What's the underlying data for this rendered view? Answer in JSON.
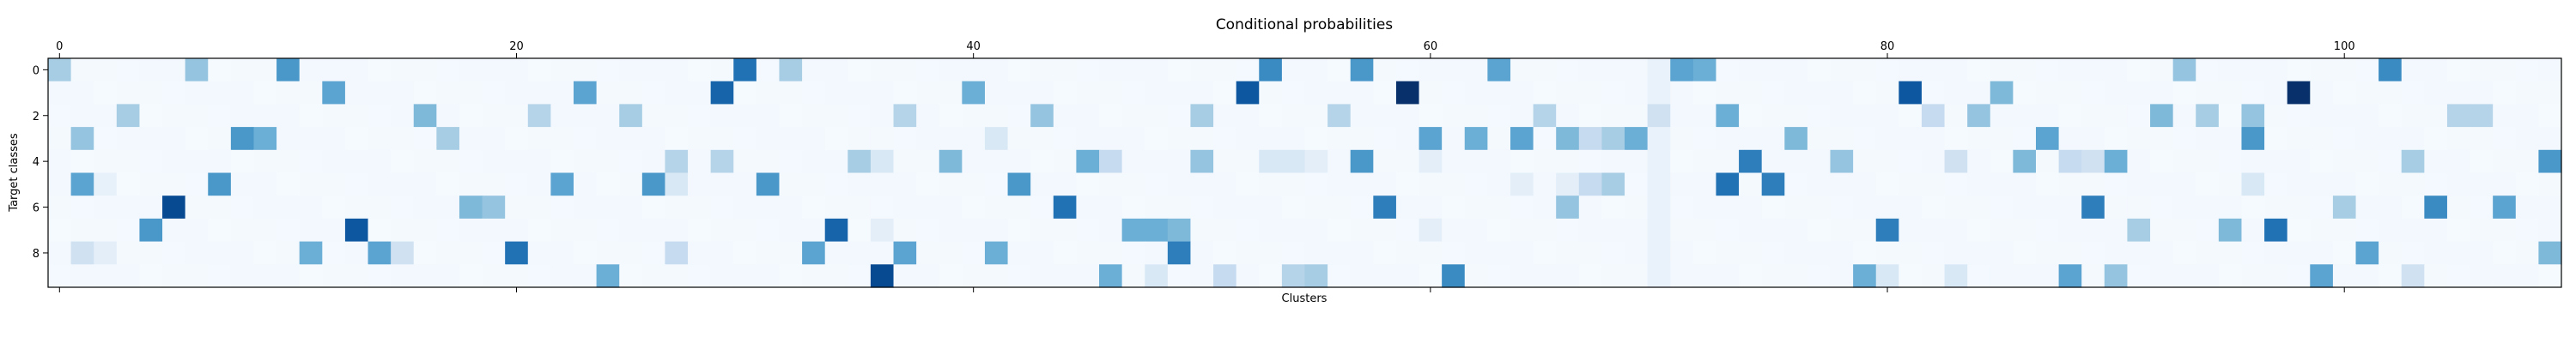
{
  "chart_data": {
    "type": "heatmap",
    "title": "Conditional probabilities",
    "xlabel": "Clusters",
    "ylabel": "Target classes",
    "n_cols": 110,
    "n_rows": 10,
    "x_ticks": [
      0,
      20,
      40,
      60,
      80,
      100
    ],
    "y_ticks": [
      0,
      2,
      4,
      6,
      8
    ],
    "x_tick_labels": [
      "0",
      "20",
      "40",
      "60",
      "80",
      "100"
    ],
    "y_tick_labels": [
      "0",
      "2",
      "4",
      "6",
      "8"
    ],
    "x_ticks_position": "top and bottom",
    "colormap": "Blues",
    "colormap_colors": [
      "#f7fbff",
      "#deebf7",
      "#c6dbef",
      "#9ecae1",
      "#6baed6",
      "#4292c6",
      "#2171b5",
      "#08519c",
      "#08306b"
    ],
    "grid": false,
    "background_level": 0.02,
    "cells": [
      {
        "row": 0,
        "col": 0,
        "v": 0.35
      },
      {
        "row": 0,
        "col": 6,
        "v": 0.4
      },
      {
        "row": 0,
        "col": 10,
        "v": 0.6
      },
      {
        "row": 0,
        "col": 30,
        "v": 0.75
      },
      {
        "row": 0,
        "col": 32,
        "v": 0.35
      },
      {
        "row": 0,
        "col": 53,
        "v": 0.65
      },
      {
        "row": 0,
        "col": 57,
        "v": 0.6
      },
      {
        "row": 0,
        "col": 63,
        "v": 0.55
      },
      {
        "row": 0,
        "col": 71,
        "v": 0.55
      },
      {
        "row": 0,
        "col": 72,
        "v": 0.5
      },
      {
        "row": 0,
        "col": 93,
        "v": 0.4
      },
      {
        "row": 0,
        "col": 102,
        "v": 0.65
      },
      {
        "row": 1,
        "col": 12,
        "v": 0.55
      },
      {
        "row": 1,
        "col": 23,
        "v": 0.55
      },
      {
        "row": 1,
        "col": 29,
        "v": 0.8
      },
      {
        "row": 1,
        "col": 40,
        "v": 0.5
      },
      {
        "row": 1,
        "col": 52,
        "v": 0.85
      },
      {
        "row": 1,
        "col": 59,
        "v": 1.0
      },
      {
        "row": 1,
        "col": 81,
        "v": 0.85
      },
      {
        "row": 1,
        "col": 85,
        "v": 0.45
      },
      {
        "row": 1,
        "col": 98,
        "v": 1.0
      },
      {
        "row": 2,
        "col": 3,
        "v": 0.35
      },
      {
        "row": 2,
        "col": 16,
        "v": 0.45
      },
      {
        "row": 2,
        "col": 21,
        "v": 0.3
      },
      {
        "row": 2,
        "col": 25,
        "v": 0.35
      },
      {
        "row": 2,
        "col": 37,
        "v": 0.3
      },
      {
        "row": 2,
        "col": 43,
        "v": 0.4
      },
      {
        "row": 2,
        "col": 50,
        "v": 0.35
      },
      {
        "row": 2,
        "col": 56,
        "v": 0.3
      },
      {
        "row": 2,
        "col": 65,
        "v": 0.3
      },
      {
        "row": 2,
        "col": 70,
        "v": 0.2
      },
      {
        "row": 2,
        "col": 73,
        "v": 0.5
      },
      {
        "row": 2,
        "col": 82,
        "v": 0.25
      },
      {
        "row": 2,
        "col": 84,
        "v": 0.4
      },
      {
        "row": 2,
        "col": 92,
        "v": 0.45
      },
      {
        "row": 2,
        "col": 94,
        "v": 0.35
      },
      {
        "row": 2,
        "col": 96,
        "v": 0.4
      },
      {
        "row": 2,
        "col": 105,
        "v": 0.3
      },
      {
        "row": 2,
        "col": 106,
        "v": 0.3
      },
      {
        "row": 3,
        "col": 1,
        "v": 0.4
      },
      {
        "row": 3,
        "col": 8,
        "v": 0.6
      },
      {
        "row": 3,
        "col": 9,
        "v": 0.5
      },
      {
        "row": 3,
        "col": 17,
        "v": 0.35
      },
      {
        "row": 3,
        "col": 41,
        "v": 0.15
      },
      {
        "row": 3,
        "col": 60,
        "v": 0.55
      },
      {
        "row": 3,
        "col": 62,
        "v": 0.5
      },
      {
        "row": 3,
        "col": 64,
        "v": 0.55
      },
      {
        "row": 3,
        "col": 66,
        "v": 0.45
      },
      {
        "row": 3,
        "col": 67,
        "v": 0.25
      },
      {
        "row": 3,
        "col": 68,
        "v": 0.35
      },
      {
        "row": 3,
        "col": 69,
        "v": 0.5
      },
      {
        "row": 3,
        "col": 76,
        "v": 0.45
      },
      {
        "row": 3,
        "col": 87,
        "v": 0.55
      },
      {
        "row": 3,
        "col": 96,
        "v": 0.6
      },
      {
        "row": 4,
        "col": 27,
        "v": 0.3
      },
      {
        "row": 4,
        "col": 29,
        "v": 0.3
      },
      {
        "row": 4,
        "col": 35,
        "v": 0.35
      },
      {
        "row": 4,
        "col": 36,
        "v": 0.15
      },
      {
        "row": 4,
        "col": 39,
        "v": 0.45
      },
      {
        "row": 4,
        "col": 45,
        "v": 0.5
      },
      {
        "row": 4,
        "col": 46,
        "v": 0.25
      },
      {
        "row": 4,
        "col": 50,
        "v": 0.4
      },
      {
        "row": 4,
        "col": 53,
        "v": 0.15
      },
      {
        "row": 4,
        "col": 54,
        "v": 0.15
      },
      {
        "row": 4,
        "col": 55,
        "v": 0.1
      },
      {
        "row": 4,
        "col": 57,
        "v": 0.6
      },
      {
        "row": 4,
        "col": 60,
        "v": 0.1
      },
      {
        "row": 4,
        "col": 74,
        "v": 0.7
      },
      {
        "row": 4,
        "col": 78,
        "v": 0.4
      },
      {
        "row": 4,
        "col": 83,
        "v": 0.2
      },
      {
        "row": 4,
        "col": 86,
        "v": 0.45
      },
      {
        "row": 4,
        "col": 88,
        "v": 0.25
      },
      {
        "row": 4,
        "col": 89,
        "v": 0.2
      },
      {
        "row": 4,
        "col": 90,
        "v": 0.5
      },
      {
        "row": 4,
        "col": 103,
        "v": 0.35
      },
      {
        "row": 4,
        "col": 109,
        "v": 0.6
      },
      {
        "row": 5,
        "col": 1,
        "v": 0.55
      },
      {
        "row": 5,
        "col": 2,
        "v": 0.08
      },
      {
        "row": 5,
        "col": 7,
        "v": 0.6
      },
      {
        "row": 5,
        "col": 22,
        "v": 0.55
      },
      {
        "row": 5,
        "col": 26,
        "v": 0.6
      },
      {
        "row": 5,
        "col": 27,
        "v": 0.15
      },
      {
        "row": 5,
        "col": 31,
        "v": 0.6
      },
      {
        "row": 5,
        "col": 42,
        "v": 0.6
      },
      {
        "row": 5,
        "col": 64,
        "v": 0.1
      },
      {
        "row": 5,
        "col": 66,
        "v": 0.1
      },
      {
        "row": 5,
        "col": 67,
        "v": 0.25
      },
      {
        "row": 5,
        "col": 68,
        "v": 0.35
      },
      {
        "row": 5,
        "col": 73,
        "v": 0.75
      },
      {
        "row": 5,
        "col": 75,
        "v": 0.7
      },
      {
        "row": 5,
        "col": 96,
        "v": 0.15
      },
      {
        "row": 6,
        "col": 5,
        "v": 0.9
      },
      {
        "row": 6,
        "col": 18,
        "v": 0.45
      },
      {
        "row": 6,
        "col": 19,
        "v": 0.4
      },
      {
        "row": 6,
        "col": 44,
        "v": 0.75
      },
      {
        "row": 6,
        "col": 58,
        "v": 0.7
      },
      {
        "row": 6,
        "col": 66,
        "v": 0.4
      },
      {
        "row": 6,
        "col": 89,
        "v": 0.7
      },
      {
        "row": 6,
        "col": 100,
        "v": 0.35
      },
      {
        "row": 6,
        "col": 104,
        "v": 0.65
      },
      {
        "row": 6,
        "col": 107,
        "v": 0.55
      },
      {
        "row": 7,
        "col": 4,
        "v": 0.6
      },
      {
        "row": 7,
        "col": 13,
        "v": 0.85
      },
      {
        "row": 7,
        "col": 34,
        "v": 0.8
      },
      {
        "row": 7,
        "col": 36,
        "v": 0.1
      },
      {
        "row": 7,
        "col": 47,
        "v": 0.5
      },
      {
        "row": 7,
        "col": 48,
        "v": 0.5
      },
      {
        "row": 7,
        "col": 49,
        "v": 0.45
      },
      {
        "row": 7,
        "col": 60,
        "v": 0.1
      },
      {
        "row": 7,
        "col": 80,
        "v": 0.7
      },
      {
        "row": 7,
        "col": 91,
        "v": 0.35
      },
      {
        "row": 7,
        "col": 95,
        "v": 0.45
      },
      {
        "row": 7,
        "col": 97,
        "v": 0.75
      },
      {
        "row": 8,
        "col": 1,
        "v": 0.2
      },
      {
        "row": 8,
        "col": 2,
        "v": 0.1
      },
      {
        "row": 8,
        "col": 11,
        "v": 0.5
      },
      {
        "row": 8,
        "col": 14,
        "v": 0.55
      },
      {
        "row": 8,
        "col": 15,
        "v": 0.2
      },
      {
        "row": 8,
        "col": 20,
        "v": 0.75
      },
      {
        "row": 8,
        "col": 27,
        "v": 0.25
      },
      {
        "row": 8,
        "col": 33,
        "v": 0.55
      },
      {
        "row": 8,
        "col": 37,
        "v": 0.55
      },
      {
        "row": 8,
        "col": 41,
        "v": 0.5
      },
      {
        "row": 8,
        "col": 49,
        "v": 0.7
      },
      {
        "row": 8,
        "col": 101,
        "v": 0.55
      },
      {
        "row": 8,
        "col": 109,
        "v": 0.45
      },
      {
        "row": 9,
        "col": 24,
        "v": 0.5
      },
      {
        "row": 9,
        "col": 36,
        "v": 0.9
      },
      {
        "row": 9,
        "col": 46,
        "v": 0.5
      },
      {
        "row": 9,
        "col": 48,
        "v": 0.15
      },
      {
        "row": 9,
        "col": 51,
        "v": 0.25
      },
      {
        "row": 9,
        "col": 54,
        "v": 0.3
      },
      {
        "row": 9,
        "col": 55,
        "v": 0.35
      },
      {
        "row": 9,
        "col": 61,
        "v": 0.65
      },
      {
        "row": 9,
        "col": 79,
        "v": 0.5
      },
      {
        "row": 9,
        "col": 80,
        "v": 0.15
      },
      {
        "row": 9,
        "col": 83,
        "v": 0.15
      },
      {
        "row": 9,
        "col": 88,
        "v": 0.55
      },
      {
        "row": 9,
        "col": 90,
        "v": 0.4
      },
      {
        "row": 9,
        "col": 99,
        "v": 0.55
      },
      {
        "row": 9,
        "col": 103,
        "v": 0.2
      }
    ],
    "faint_column": {
      "col": 70,
      "v": 0.07
    }
  }
}
